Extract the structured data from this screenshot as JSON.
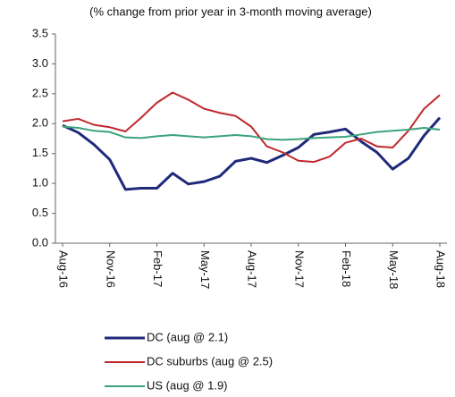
{
  "chart_data": {
    "type": "line",
    "subtitle": "(% change from prior year in 3-month moving average)",
    "categories": [
      "Aug-16",
      null,
      null,
      "Nov-16",
      null,
      null,
      "Feb-17",
      null,
      null,
      "May-17",
      null,
      null,
      "Aug-17",
      null,
      null,
      "Nov-17",
      null,
      null,
      "Feb-18",
      null,
      null,
      "May-18",
      null,
      null,
      "Aug-18"
    ],
    "series": [
      {
        "name": "DC (aug @ 2.1)",
        "color": "#1f2a7a",
        "values": [
          1.97,
          1.85,
          1.65,
          1.4,
          0.9,
          0.92,
          0.92,
          1.17,
          0.99,
          1.03,
          1.12,
          1.37,
          1.42,
          1.35,
          1.47,
          1.6,
          1.82,
          1.86,
          1.91,
          1.7,
          1.52,
          1.24,
          1.42,
          1.8,
          2.1
        ]
      },
      {
        "name": "DC suburbs (aug @ 2.5)",
        "color": "#c0282d",
        "values": [
          2.04,
          2.08,
          1.98,
          1.94,
          1.87,
          2.1,
          2.35,
          2.52,
          2.4,
          2.25,
          2.18,
          2.13,
          1.95,
          1.62,
          1.52,
          1.38,
          1.36,
          1.45,
          1.68,
          1.75,
          1.62,
          1.6,
          1.88,
          2.25,
          2.48
        ]
      },
      {
        "name": "US (aug @ 1.9)",
        "color": "#3aa37a",
        "values": [
          1.95,
          1.93,
          1.88,
          1.86,
          1.77,
          1.76,
          1.79,
          1.81,
          1.79,
          1.77,
          1.79,
          1.81,
          1.79,
          1.74,
          1.73,
          1.74,
          1.76,
          1.77,
          1.78,
          1.82,
          1.86,
          1.88,
          1.9,
          1.93,
          1.9
        ]
      }
    ],
    "ylim": [
      0,
      3.5
    ],
    "yticks": [
      {
        "value": 0,
        "label": "0.0"
      },
      0.5,
      {
        "value": 1,
        "label": "1.0"
      },
      1.5,
      {
        "value": 2,
        "label": "2.0"
      },
      2.5,
      {
        "value": 3,
        "label": "3.0"
      },
      3.5
    ],
    "grid": false
  }
}
